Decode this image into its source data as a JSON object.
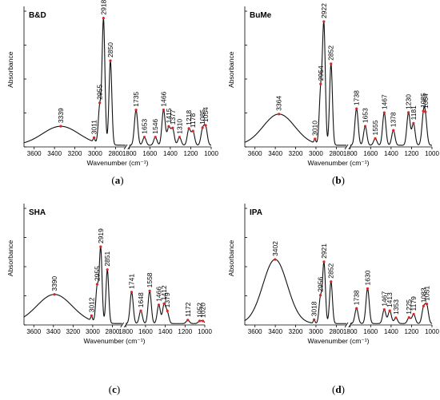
{
  "colors": {
    "trace": "#111111",
    "marker": "#d62728"
  },
  "chart_data": [
    {
      "type": "line",
      "name": "B&D",
      "caption": "a",
      "xlabel": "Wavenumber (cm⁻¹)",
      "ylabel": "Absorbance",
      "x_ticks": [
        3600,
        3400,
        3200,
        3000,
        2800,
        1800,
        1600,
        1400,
        1200,
        1000
      ],
      "x_ranges": [
        [
          3700,
          2700
        ],
        [
          1800,
          1000
        ]
      ],
      "ylim": [
        0,
        100
      ],
      "peaks": [
        {
          "x": 3339,
          "y": 14,
          "label": "3339"
        },
        {
          "x": 3011,
          "y": 3,
          "label": "3011"
        },
        {
          "x": 2955,
          "y": 27,
          "label": "2955"
        },
        {
          "x": 2918,
          "y": 92,
          "label": "2918"
        },
        {
          "x": 2850,
          "y": 62,
          "label": "2850"
        },
        {
          "x": 1735,
          "y": 26,
          "label": "1735"
        },
        {
          "x": 1653,
          "y": 6,
          "label": "1653"
        },
        {
          "x": 1546,
          "y": 6,
          "label": "1546"
        },
        {
          "x": 1466,
          "y": 26,
          "label": "1466"
        },
        {
          "x": 1415,
          "y": 13,
          "label": "1415"
        },
        {
          "x": 1377,
          "y": 12,
          "label": "1377"
        },
        {
          "x": 1310,
          "y": 6,
          "label": "1310"
        },
        {
          "x": 1218,
          "y": 12,
          "label": "1218"
        },
        {
          "x": 1178,
          "y": 10,
          "label": "1178"
        },
        {
          "x": 1085,
          "y": 11,
          "label": "1085"
        },
        {
          "x": 1054,
          "y": 13,
          "label": "1054"
        }
      ]
    },
    {
      "type": "line",
      "name": "BuMe",
      "caption": "b",
      "xlabel": "Wavenumber (cm⁻¹)",
      "ylabel": "Absorbance",
      "x_ticks": [
        3600,
        3400,
        3200,
        3000,
        2800,
        1800,
        1600,
        1400,
        1200,
        1000
      ],
      "x_ranges": [
        [
          3700,
          2700
        ],
        [
          1800,
          1000
        ]
      ],
      "ylim": [
        0,
        100
      ],
      "peaks": [
        {
          "x": 3364,
          "y": 23,
          "label": "3364"
        },
        {
          "x": 3010,
          "y": 3,
          "label": "3010"
        },
        {
          "x": 2954,
          "y": 38,
          "label": "2954"
        },
        {
          "x": 2922,
          "y": 88,
          "label": "2922"
        },
        {
          "x": 2852,
          "y": 60,
          "label": "2852"
        },
        {
          "x": 1738,
          "y": 27,
          "label": "1738"
        },
        {
          "x": 1653,
          "y": 14,
          "label": "1653"
        },
        {
          "x": 1555,
          "y": 5,
          "label": "1555"
        },
        {
          "x": 1467,
          "y": 24,
          "label": "1467"
        },
        {
          "x": 1378,
          "y": 11,
          "label": "1378"
        },
        {
          "x": 1230,
          "y": 24,
          "label": "1230"
        },
        {
          "x": 1181,
          "y": 16,
          "label": "1181"
        },
        {
          "x": 1085,
          "y": 18,
          "label": "1085"
        },
        {
          "x": 1064,
          "y": 17,
          "label": "1064"
        }
      ]
    },
    {
      "type": "line",
      "name": "SHA",
      "caption": "c",
      "xlabel": "Wavenumber (cm⁻¹)",
      "ylabel": "Absorbance",
      "x_ticks": [
        3600,
        3400,
        3200,
        3000,
        2800,
        1800,
        1600,
        1400,
        1200,
        1000
      ],
      "x_ranges": [
        [
          3700,
          2700
        ],
        [
          1800,
          1000
        ]
      ],
      "ylim": [
        0,
        100
      ],
      "peaks": [
        {
          "x": 3390,
          "y": 25,
          "label": "3390"
        },
        {
          "x": 3012,
          "y": 4,
          "label": "3012"
        },
        {
          "x": 2955,
          "y": 30,
          "label": "2955"
        },
        {
          "x": 2919,
          "y": 64,
          "label": "2919"
        },
        {
          "x": 2851,
          "y": 46,
          "label": "2851"
        },
        {
          "x": 1741,
          "y": 27,
          "label": "1741"
        },
        {
          "x": 1648,
          "y": 11,
          "label": "1648"
        },
        {
          "x": 1558,
          "y": 28,
          "label": "1558"
        },
        {
          "x": 1466,
          "y": 16,
          "label": "1466"
        },
        {
          "x": 1412,
          "y": 16,
          "label": "1412"
        },
        {
          "x": 1379,
          "y": 9,
          "label": "1379"
        },
        {
          "x": 1172,
          "y": 3,
          "label": "1172"
        },
        {
          "x": 1052,
          "y": 2,
          "label": "1052"
        },
        {
          "x": 1020,
          "y": 2,
          "label": "1020"
        }
      ]
    },
    {
      "type": "line",
      "name": "IPA",
      "caption": "d",
      "xlabel": "Wavenumber (cm⁻¹)",
      "ylabel": "Absorbance",
      "x_ticks": [
        3600,
        3400,
        3200,
        3000,
        2800,
        1800,
        1600,
        1400,
        1200,
        1000
      ],
      "x_ranges": [
        [
          3700,
          2700
        ],
        [
          1800,
          1000
        ]
      ],
      "ylim": [
        0,
        100
      ],
      "peaks": [
        {
          "x": 3402,
          "y": 55,
          "label": "3402"
        },
        {
          "x": 3018,
          "y": 3,
          "label": "3018"
        },
        {
          "x": 2956,
          "y": 22,
          "label": "2956"
        },
        {
          "x": 2921,
          "y": 52,
          "label": "2921"
        },
        {
          "x": 2852,
          "y": 36,
          "label": "2852"
        },
        {
          "x": 1738,
          "y": 13,
          "label": "1738"
        },
        {
          "x": 1630,
          "y": 30,
          "label": "1630"
        },
        {
          "x": 1467,
          "y": 12,
          "label": "1467"
        },
        {
          "x": 1413,
          "y": 11,
          "label": "1413"
        },
        {
          "x": 1353,
          "y": 5,
          "label": "1353"
        },
        {
          "x": 1225,
          "y": 5,
          "label": "1225"
        },
        {
          "x": 1179,
          "y": 8,
          "label": "1179"
        },
        {
          "x": 1083,
          "y": 13,
          "label": "1083"
        },
        {
          "x": 1051,
          "y": 15,
          "label": "1051"
        }
      ]
    }
  ]
}
